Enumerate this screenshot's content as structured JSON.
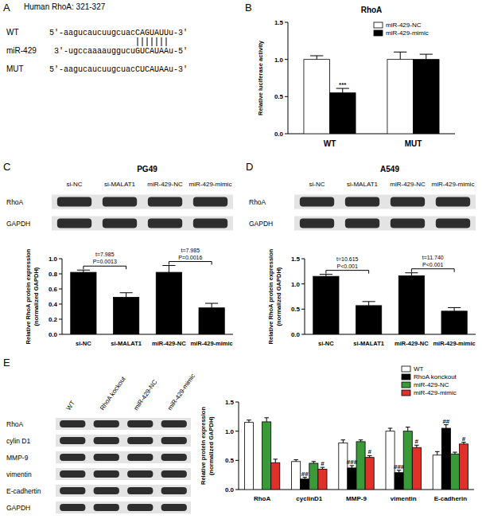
{
  "sequence_panel": {
    "panel_label": "A",
    "title": "Human RhoA: 321-327",
    "rows": [
      {
        "label": "WT",
        "sequence": "5'-aagucaucuugcuacCAGUAUUu-3'"
      },
      {
        "label": "miR-429",
        "sequence": "3'-ugccaaaauggucuGUCAUAAu-5'"
      },
      {
        "label": "MUT",
        "sequence": "5'-aagucaucuugcuacCUCAUAAu-3'"
      }
    ]
  },
  "blots": [
    {
      "rows": [
        "RhoA",
        "GAPDH"
      ],
      "lanes": [
        "si-NC",
        "si-MALAT1",
        "miR-429-NC",
        "miR-429-mimic"
      ]
    },
    {
      "rows": [
        "RhoA",
        "GAPDH"
      ],
      "lanes": [
        "si-NC",
        "si-MALAT1",
        "miR-429-NC",
        "miR-429-mimic"
      ]
    },
    {
      "rows": [
        "RhoA",
        "cylin D1",
        "MMP-9",
        "vimentin",
        "E-cadhertin",
        "GAPDH"
      ],
      "lanes": [
        "WT",
        "RhoA kockout",
        "miR-429-NC",
        "miR-429-mimic"
      ]
    }
  ],
  "chart_data": [
    {
      "type": "bar",
      "panel_label": "B",
      "title": "RhoA",
      "y_label": "Relative luciferase activity",
      "categories": [
        "WT",
        "MUT"
      ],
      "series": [
        {
          "name": "miR-429-NC",
          "color": "#ffffff",
          "values": [
            1.0,
            1.0
          ],
          "errors": [
            0.05,
            0.1
          ]
        },
        {
          "name": "miR-429-mimic",
          "color": "#000000",
          "values": [
            0.55,
            1.0
          ],
          "errors": [
            0.06,
            0.07
          ]
        }
      ],
      "ylim": [
        0,
        1.5
      ],
      "yticks": [
        {
          "value": 0,
          "label": "0.0"
        },
        0.5,
        {
          "value": 1,
          "label": "1.0"
        },
        1.5
      ],
      "legend": "upper right",
      "annotations": [
        {
          "text": "***",
          "category": 0,
          "series": 1
        }
      ]
    },
    {
      "type": "bar",
      "panel_label": "C",
      "title": "PG49",
      "y_label": [
        "Relative RhoA protein expression",
        "(normalized GAPDH)"
      ],
      "categories": [
        "si-NC",
        "si-MALAT1",
        "miR-429-NC",
        "miR-429-mimic"
      ],
      "series": [
        {
          "color": "#000000",
          "values": [
            0.82,
            0.49,
            0.82,
            0.35
          ],
          "errors": [
            0.03,
            0.06,
            0.09,
            0.06
          ]
        }
      ],
      "ylim": [
        0,
        1
      ],
      "yticks": [
        {
          "value": 0,
          "label": "0.0"
        },
        0.2,
        0.4,
        0.6,
        0.8,
        {
          "value": 1,
          "label": "1.0"
        }
      ],
      "comparisons": [
        {
          "from": 0,
          "to": 1,
          "t": "t=7.985",
          "p": "P=0.0013"
        },
        {
          "from": 2,
          "to": 3,
          "t": "t=7.985",
          "p": "P=0.0016"
        }
      ]
    },
    {
      "type": "bar",
      "panel_label": "D",
      "title": "A549",
      "y_label": [
        "Relative RhoA protein expression",
        "(normalized GAPDH)"
      ],
      "categories": [
        "si-NC",
        "si-MALAT1",
        "miR-429-NC",
        "miR-429-mimic"
      ],
      "series": [
        {
          "color": "#000000",
          "values": [
            1.15,
            0.57,
            1.16,
            0.46
          ],
          "errors": [
            0.04,
            0.08,
            0.06,
            0.07
          ]
        }
      ],
      "ylim": [
        0,
        1.5
      ],
      "yticks": [
        {
          "value": 0,
          "label": "0.0"
        },
        0.5,
        {
          "value": 1,
          "label": "1.0"
        },
        1.5
      ],
      "comparisons": [
        {
          "from": 0,
          "to": 1,
          "t": "t=10.615",
          "p": "P<0.001"
        },
        {
          "from": 2,
          "to": 3,
          "t": "t=11.740",
          "p": "P<0.001"
        }
      ]
    },
    {
      "type": "bar",
      "panel_label": "E",
      "y_label": [
        "Relative protein expression",
        "(normalized GAPDH)"
      ],
      "categories": [
        "RhoA",
        "cyclinD1",
        "MMP-9",
        "vimentin",
        "E-cadherin"
      ],
      "series": [
        {
          "name": "WT",
          "color": "#ffffff",
          "values": [
            1.15,
            0.48,
            0.8,
            1.0,
            0.59
          ],
          "errors": [
            0.04,
            0.03,
            0.05,
            0.05,
            0.06
          ]
        },
        {
          "name": "RhoA konckout",
          "color": "#000000",
          "values": [
            null,
            0.18,
            0.37,
            0.29,
            1.05
          ],
          "errors": [
            null,
            0.03,
            0.04,
            0.04,
            0.06
          ]
        },
        {
          "name": "miR-429-NC",
          "color": "#3a9a3a",
          "values": [
            1.16,
            0.45,
            0.82,
            1.0,
            0.61
          ],
          "errors": [
            0.07,
            0.03,
            0.03,
            0.07,
            0.03
          ]
        },
        {
          "name": "miR-429-mimic",
          "color": "#e0302a",
          "values": [
            0.46,
            0.35,
            0.55,
            0.72,
            0.78
          ],
          "errors": [
            0.06,
            0.03,
            0.03,
            0.04,
            0.03
          ]
        }
      ],
      "ylim": [
        0,
        1.5
      ],
      "yticks": [
        {
          "value": 0,
          "label": "0.0"
        },
        0.5,
        {
          "value": 1,
          "label": "1.0"
        },
        1.5
      ],
      "legend": "upper right",
      "annotations": [
        {
          "text": "##",
          "category": 1,
          "series": 1
        },
        {
          "text": "#",
          "category": 1,
          "series": 3
        },
        {
          "text": "###",
          "category": 2,
          "series": 1
        },
        {
          "text": "#",
          "category": 2,
          "series": 3
        },
        {
          "text": "###",
          "category": 3,
          "series": 1
        },
        {
          "text": "#",
          "category": 3,
          "series": 3
        },
        {
          "text": "##",
          "category": 4,
          "series": 1
        },
        {
          "text": "#",
          "category": 4,
          "series": 3
        }
      ]
    }
  ]
}
